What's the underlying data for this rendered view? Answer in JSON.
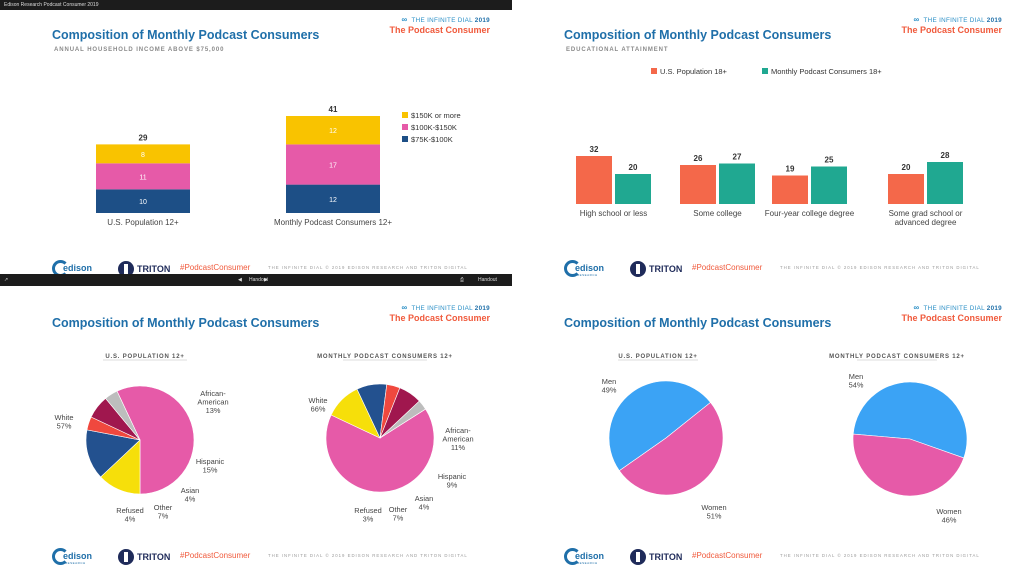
{
  "window": {
    "topbar_title": "Edison Research Podcast Consumer 2019"
  },
  "controls": {
    "prev_glyph": "◀",
    "slide_label": "Handout",
    "next_glyph": "▶",
    "right_label": "Handout"
  },
  "brand": {
    "infinite_dial_prefix": "THE",
    "infinite_dial": "INFINITE DIAL",
    "year": "2019",
    "podcast_consumer": "The Podcast Consumer"
  },
  "footer": {
    "edison": "edison",
    "edison_sub": "RESEARCH",
    "triton": "TRITON",
    "hashtag": "#PodcastConsumer",
    "copyright": "THE INFINITE DIAL  © 2019 EDISON RESEARCH AND TRITON DIGITAL"
  },
  "slides": [
    {
      "title": "Composition of Monthly Podcast Consumers",
      "subtitle": "ANNUAL HOUSEHOLD INCOME ABOVE $75,000"
    },
    {
      "title": "Composition of Monthly Podcast Consumers",
      "subtitle": "EDUCATIONAL ATTAINMENT"
    },
    {
      "title": "Composition of Monthly Podcast Consumers",
      "subtitle": ""
    },
    {
      "title": "Composition of Monthly Podcast Consumers",
      "subtitle": ""
    }
  ],
  "colors": {
    "yellow": "#f9c300",
    "pink": "#e65aa8",
    "navy": "#1d4f86",
    "coral": "#f4684a",
    "teal": "#20a891",
    "blue": "#3ba3f5",
    "pie_yellow": "#f6df0a",
    "pie_navy": "#23518f",
    "pie_red": "#f0483e",
    "pie_maroon": "#a0174e",
    "pie_gray": "#bdbdbd"
  },
  "chart_data": [
    {
      "type": "bar",
      "stacked": true,
      "categories": [
        "U.S. Population 12+",
        "Monthly Podcast Consumers 12+"
      ],
      "totals": [
        29,
        41
      ],
      "series": [
        {
          "name": "$75K-$100K",
          "values": [
            10,
            12
          ],
          "color": "#1d4f86"
        },
        {
          "name": "$100K-$150K",
          "values": [
            11,
            17
          ],
          "color": "#e65aa8"
        },
        {
          "name": "$150K or more",
          "values": [
            8,
            12
          ],
          "color": "#f9c300"
        }
      ],
      "legend_order": [
        "$150K or more",
        "$100K-$150K",
        "$75K-$100K"
      ],
      "ylim": [
        0,
        41
      ]
    },
    {
      "type": "bar",
      "categories": [
        [
          "High school or less"
        ],
        [
          "Some college"
        ],
        [
          "Four-year college degree"
        ],
        [
          "Some grad school or",
          "advanced degree"
        ]
      ],
      "series": [
        {
          "name": "U.S. Population 18+",
          "values": [
            32,
            26,
            19,
            20
          ],
          "color": "#f4684a"
        },
        {
          "name": "Monthly Podcast Consumers 18+",
          "values": [
            20,
            27,
            25,
            28
          ],
          "color": "#20a891"
        }
      ],
      "ylim": [
        0,
        32
      ]
    },
    {
      "type": "pie",
      "charts": [
        {
          "heading": "U.S. POPULATION 12+",
          "slices": [
            {
              "label": "White",
              "value": 57,
              "color": "#e65aa8"
            },
            {
              "label": "African-American",
              "value": 13,
              "color": "#f6df0a"
            },
            {
              "label": "Hispanic",
              "value": 15,
              "color": "#23518f"
            },
            {
              "label": "Asian",
              "value": 4,
              "color": "#f0483e"
            },
            {
              "label": "Other",
              "value": 7,
              "color": "#a0174e"
            },
            {
              "label": "Refused",
              "value": 4,
              "color": "#bdbdbd"
            }
          ]
        },
        {
          "heading": "MONTHLY PODCAST CONSUMERS 12+",
          "slices": [
            {
              "label": "White",
              "value": 66,
              "color": "#e65aa8"
            },
            {
              "label": "African-American",
              "value": 11,
              "color": "#f6df0a"
            },
            {
              "label": "Hispanic",
              "value": 9,
              "color": "#23518f"
            },
            {
              "label": "Asian",
              "value": 4,
              "color": "#f0483e"
            },
            {
              "label": "Other",
              "value": 7,
              "color": "#a0174e"
            },
            {
              "label": "Refused",
              "value": 3,
              "color": "#bdbdbd"
            }
          ]
        }
      ]
    },
    {
      "type": "pie",
      "charts": [
        {
          "heading": "U.S. POPULATION 12+",
          "slices": [
            {
              "label": "Men",
              "value": 49,
              "color": "#3ba3f5"
            },
            {
              "label": "Women",
              "value": 51,
              "color": "#e65aa8"
            }
          ]
        },
        {
          "heading": "MONTHLY PODCAST CONSUMERS 12+",
          "slices": [
            {
              "label": "Men",
              "value": 54,
              "color": "#3ba3f5"
            },
            {
              "label": "Women",
              "value": 46,
              "color": "#e65aa8"
            }
          ]
        }
      ]
    }
  ]
}
